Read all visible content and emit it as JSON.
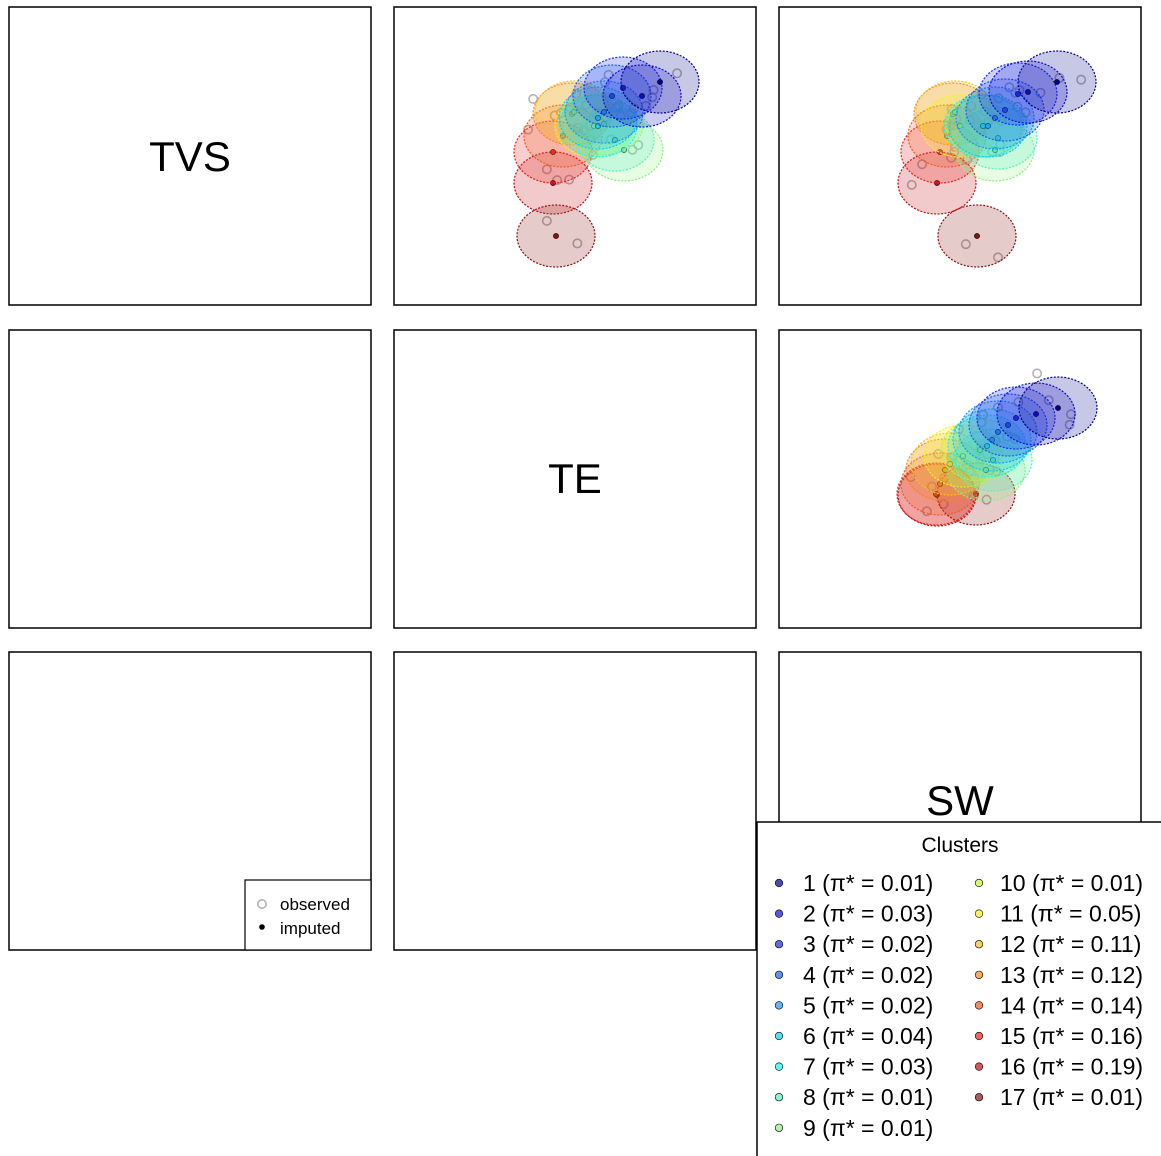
{
  "chart_data": {
    "type": "scatter",
    "layout": "scatterplot matrix, 3x3",
    "variables": [
      "TVS",
      "TE",
      "SW"
    ],
    "diagonal_labels": [
      "TVS",
      "TE",
      "SW"
    ],
    "upper_panels": "cluster ellipses",
    "lower_panels": "observed vs imputed points",
    "axes_shown": false,
    "scatter_legend": {
      "position": "bottom-right of panel TVS x SW",
      "entries": [
        {
          "label": "observed",
          "marker": "open circle",
          "color": "#b3b3b3"
        },
        {
          "label": "imputed",
          "marker": "filled circle",
          "color": "#000000"
        }
      ]
    },
    "cluster_legend": {
      "title": "Clusters",
      "position": "bottom-right",
      "pi_prefix": "(π* = ",
      "pi_suffix": ")",
      "clusters": [
        {
          "id": "1",
          "pi": "0.01",
          "color": "#00008b"
        },
        {
          "id": "2",
          "pi": "0.03",
          "color": "#1010d8"
        },
        {
          "id": "3",
          "pi": "0.02",
          "color": "#1c2cf0"
        },
        {
          "id": "4",
          "pi": "0.02",
          "color": "#1f62e6"
        },
        {
          "id": "5",
          "pi": "0.02",
          "color": "#2196f3"
        },
        {
          "id": "6",
          "pi": "0.04",
          "color": "#19c9ee"
        },
        {
          "id": "7",
          "pi": "0.03",
          "color": "#1ef2f2"
        },
        {
          "id": "8",
          "pi": "0.01",
          "color": "#55f2c0"
        },
        {
          "id": "9",
          "pi": "0.01",
          "color": "#8df07e"
        },
        {
          "id": "10",
          "pi": "0.01",
          "color": "#c4f23a"
        },
        {
          "id": "11",
          "pi": "0.05",
          "color": "#f4f21a"
        },
        {
          "id": "12",
          "pi": "0.11",
          "color": "#f2c21e"
        },
        {
          "id": "13",
          "pi": "0.12",
          "color": "#f28a1c"
        },
        {
          "id": "14",
          "pi": "0.14",
          "color": "#f25a20"
        },
        {
          "id": "15",
          "pi": "0.16",
          "color": "#e8221c"
        },
        {
          "id": "16",
          "pi": "0.19",
          "color": "#c40f12"
        },
        {
          "id": "17",
          "pi": "0.01",
          "color": "#8b1010"
        }
      ]
    },
    "colors": {
      "observed": "#b3b3b3",
      "imputed": "#000000",
      "panel_border": "#000000"
    }
  }
}
